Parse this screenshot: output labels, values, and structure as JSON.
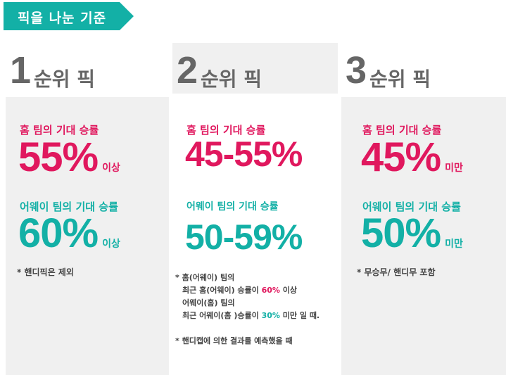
{
  "header": {
    "label": "픽을 나눈 기준",
    "color": "#13b0a6"
  },
  "colors": {
    "home": "#e0185e",
    "away": "#13b0a6"
  },
  "columns": [
    {
      "num": "1",
      "title": "순위 픽",
      "home_label": "홈 팀의 기대 승률",
      "home_value": "55%",
      "home_suffix": "이상",
      "away_label": "어웨이 팀의 기대 승률",
      "away_value": "60%",
      "away_suffix": "이상",
      "note": "* 핸디픽은 제외"
    },
    {
      "num": "2",
      "title": "순위 픽",
      "home_label": "홈 팀의 기대 승률",
      "home_value": "45-55%",
      "away_label": "어웨이 팀의 기대 승률",
      "away_value": "50-59%",
      "notes": {
        "l1": "* 홈(어웨이) 팀의",
        "l2a": "최근 홈(어웨이) 승률이 ",
        "l2b": "60%",
        "l2c": " 이상",
        "l3": "어웨이(홈) 팀의",
        "l4a": "최근 어웨이(홈 )승률이 ",
        "l4b": "30%",
        "l4c": " 미만 일 때.",
        "l5": "* 핸디캡에 의한 결과를 예측했을 때"
      }
    },
    {
      "num": "3",
      "title": "순위 픽",
      "home_label": "홈 팀의 기대 승률",
      "home_value": "45%",
      "home_suffix": "미만",
      "away_label": "어웨이 팀의 기대 승률",
      "away_value": "50%",
      "away_suffix": "미만",
      "note": "* 무승무/ 핸디무 포함"
    }
  ]
}
